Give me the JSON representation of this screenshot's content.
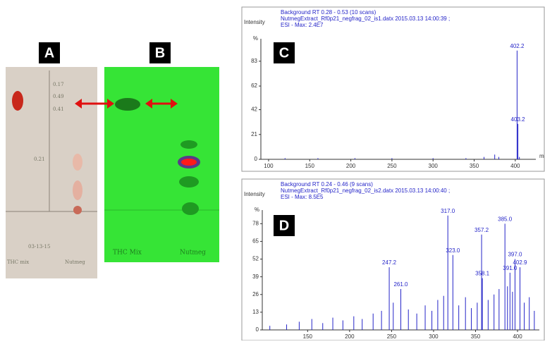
{
  "panels": {
    "A": "A",
    "B": "B"
  },
  "plate_a_notes": [
    "0.17",
    "0.49",
    "0.41",
    "0.21",
    "03-13-15",
    "THC mix",
    "Nutmeg"
  ],
  "plate_b_notes": [
    "THC Mix",
    "Nutmeg"
  ],
  "chart_data": [
    {
      "type": "spectrum",
      "panel": "C",
      "y_label": "Intensity",
      "y_unit": "%",
      "x_unit": "m",
      "header": [
        "Background RT 0.28 - 0.53 (10 scans)",
        "NutmegExtract_Rf0p21_negfrag_02_is1.datx 2015.03.13 14:00:39 ;",
        "ESI - Max: 2.4E7"
      ],
      "x": [
        120,
        160,
        205,
        250,
        300,
        340,
        362,
        375,
        380,
        402.2,
        403.2,
        405
      ],
      "values": [
        1,
        1,
        1,
        1,
        1,
        1,
        2,
        4,
        2,
        92,
        30,
        2
      ],
      "peak_labels": [
        null,
        null,
        null,
        null,
        null,
        null,
        null,
        null,
        null,
        "402.2",
        "403.2",
        null
      ],
      "xlim": [
        90.6,
        425
      ],
      "ylim": [
        0,
        102
      ],
      "xticks": [
        100,
        150,
        200,
        250,
        300,
        350,
        400
      ],
      "yticks": [
        0,
        21,
        42,
        62,
        83
      ]
    },
    {
      "type": "spectrum",
      "panel": "D",
      "y_label": "Intensity",
      "y_unit": "%",
      "header": [
        "Background RT 0.24 - 0.46 (9 scans)",
        "NutmegExtract_Rf0p21_negfrag_02_is2.datx 2015.03.13 14:00:40 ;",
        "ESI - Max: 8.5E5"
      ],
      "x": [
        105,
        125,
        140,
        155,
        168,
        180,
        192,
        205,
        215,
        228,
        238,
        247.2,
        252,
        261.0,
        270,
        280,
        290,
        298,
        305,
        312,
        317.0,
        323.0,
        330,
        338,
        345,
        352,
        357.2,
        358.1,
        365,
        372,
        378,
        385.0,
        388,
        391.0,
        394,
        397.0,
        402.9,
        408,
        414,
        420
      ],
      "values": [
        3,
        4,
        6,
        8,
        5,
        9,
        7,
        10,
        8,
        12,
        14,
        46,
        20,
        30,
        15,
        12,
        18,
        14,
        22,
        25,
        84,
        55,
        18,
        24,
        16,
        20,
        70,
        38,
        22,
        26,
        30,
        78,
        32,
        42,
        28,
        52,
        46,
        20,
        24,
        14
      ],
      "peak_labels": [
        null,
        null,
        null,
        null,
        null,
        null,
        null,
        null,
        null,
        null,
        null,
        "247.2",
        null,
        "261.0",
        null,
        null,
        null,
        null,
        null,
        null,
        "317.0",
        "323.0",
        null,
        null,
        null,
        null,
        "357.2",
        "358.1",
        null,
        null,
        null,
        "385.0",
        null,
        "391.0",
        null,
        "397.0",
        "402.9",
        null,
        null,
        null
      ],
      "xlim": [
        96,
        426
      ],
      "ylim": [
        0,
        88
      ],
      "xticks": [
        150,
        200,
        250,
        300,
        350,
        400
      ],
      "yticks": [
        0,
        13,
        26,
        39,
        52,
        65,
        78
      ]
    }
  ]
}
